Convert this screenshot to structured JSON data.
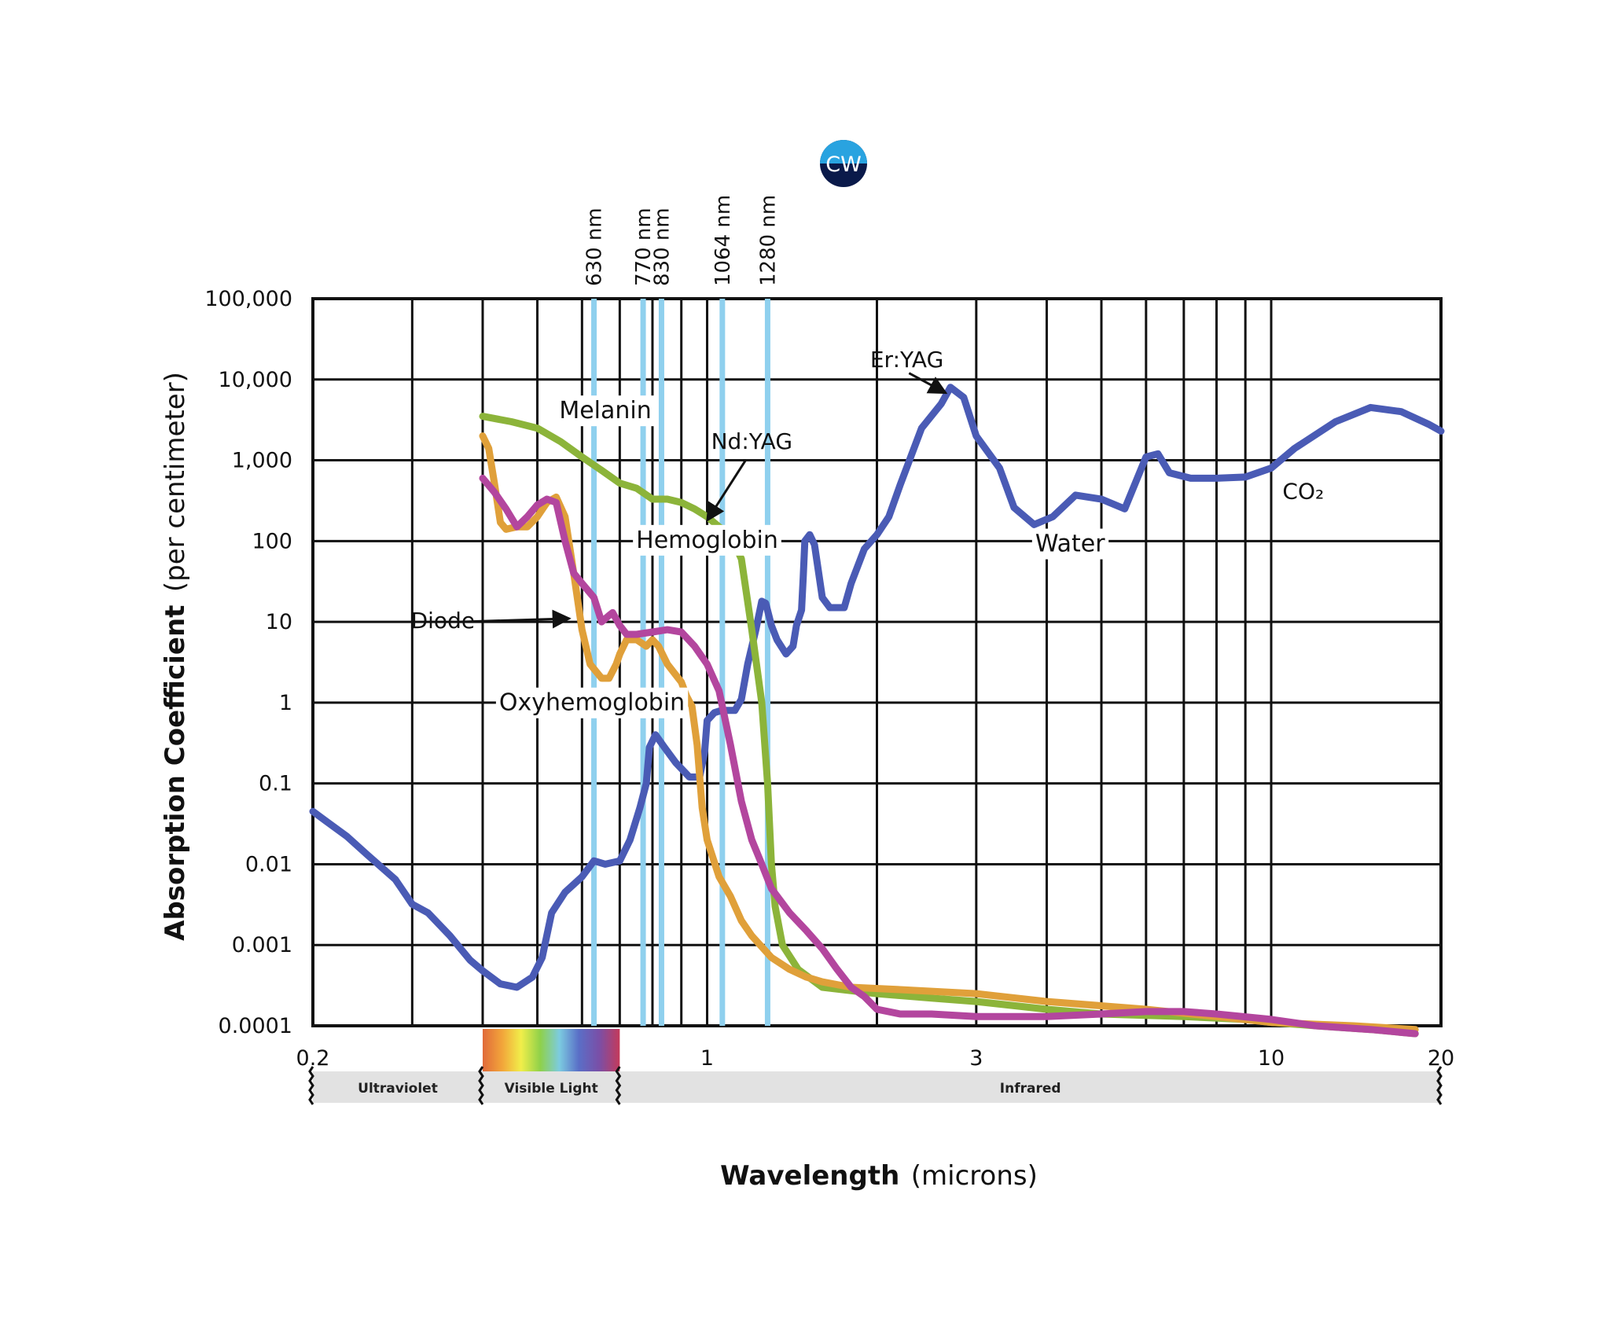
{
  "logo": {
    "text": "CW"
  },
  "chart_data": {
    "type": "line",
    "xlabel_bold": "Wavelength",
    "xlabel_rest": "(microns)",
    "ylabel_bold": "Absorption Coefficient",
    "ylabel_rest": "(per centimeter)",
    "xscale": "log",
    "yscale": "log",
    "xlim": [
      0.2,
      20
    ],
    "ylim": [
      0.0001,
      100000
    ],
    "x_tick_labels": [
      {
        "value": 0.2,
        "label": "0.2"
      },
      {
        "value": 1,
        "label": "1"
      },
      {
        "value": 3,
        "label": "3"
      },
      {
        "value": 10,
        "label": "10"
      },
      {
        "value": 20,
        "label": "20"
      }
    ],
    "y_tick_labels": [
      {
        "value": 100000,
        "label": "100,000"
      },
      {
        "value": 10000,
        "label": "10,000"
      },
      {
        "value": 1000,
        "label": "1,000"
      },
      {
        "value": 100,
        "label": "100"
      },
      {
        "value": 10,
        "label": "10"
      },
      {
        "value": 1,
        "label": "1"
      },
      {
        "value": 0.1,
        "label": "0.1"
      },
      {
        "value": 0.01,
        "label": "0.01"
      },
      {
        "value": 0.001,
        "label": "0.001"
      },
      {
        "value": 0.0001,
        "label": "0.0001"
      }
    ],
    "grid": true,
    "x_gridlines": [
      0.2,
      0.3,
      0.4,
      0.5,
      0.6,
      0.7,
      0.8,
      0.9,
      1,
      2,
      3,
      4,
      5,
      6,
      7,
      8,
      9,
      10,
      20
    ],
    "wavelength_markers": [
      {
        "value": 0.63,
        "label": "630 nm"
      },
      {
        "value": 0.77,
        "label": "770 nm"
      },
      {
        "value": 0.83,
        "label": "830 nm"
      },
      {
        "value": 1.064,
        "label": "1064 nm"
      },
      {
        "value": 1.28,
        "label": "1280 nm"
      }
    ],
    "bands": [
      {
        "label": "Ultraviolet",
        "from": 0.2,
        "to": 0.4
      },
      {
        "label": "Visible Light",
        "from": 0.4,
        "to": 0.7
      },
      {
        "label": "Infrared",
        "from": 0.7,
        "to": 20
      }
    ],
    "series": [
      {
        "label": "Water",
        "color": "#4a5bb5",
        "points": [
          [
            0.2,
            0.045
          ],
          [
            0.21,
            0.035
          ],
          [
            0.23,
            0.022
          ],
          [
            0.25,
            0.013
          ],
          [
            0.28,
            0.0065
          ],
          [
            0.3,
            0.0032
          ],
          [
            0.32,
            0.0025
          ],
          [
            0.35,
            0.0013
          ],
          [
            0.38,
            0.00065
          ],
          [
            0.4,
            0.00048
          ],
          [
            0.43,
            0.00033
          ],
          [
            0.46,
            0.0003
          ],
          [
            0.49,
            0.0004
          ],
          [
            0.51,
            0.0007
          ],
          [
            0.53,
            0.0025
          ],
          [
            0.56,
            0.0045
          ],
          [
            0.6,
            0.007
          ],
          [
            0.63,
            0.011
          ],
          [
            0.66,
            0.01
          ],
          [
            0.7,
            0.011
          ],
          [
            0.73,
            0.02
          ],
          [
            0.76,
            0.05
          ],
          [
            0.78,
            0.1
          ],
          [
            0.79,
            0.28
          ],
          [
            0.81,
            0.4
          ],
          [
            0.84,
            0.28
          ],
          [
            0.88,
            0.18
          ],
          [
            0.93,
            0.12
          ],
          [
            0.97,
            0.12
          ],
          [
            0.99,
            0.25
          ],
          [
            1.0,
            0.6
          ],
          [
            1.03,
            0.75
          ],
          [
            1.06,
            0.8
          ],
          [
            1.08,
            0.8
          ],
          [
            1.12,
            0.8
          ],
          [
            1.15,
            1.1
          ],
          [
            1.18,
            3
          ],
          [
            1.22,
            8
          ],
          [
            1.25,
            18
          ],
          [
            1.27,
            17
          ],
          [
            1.3,
            9
          ],
          [
            1.33,
            6
          ],
          [
            1.38,
            4
          ],
          [
            1.42,
            5
          ],
          [
            1.44,
            9
          ],
          [
            1.47,
            14
          ],
          [
            1.48,
            35
          ],
          [
            1.49,
            100
          ],
          [
            1.52,
            120
          ],
          [
            1.55,
            90
          ],
          [
            1.6,
            20
          ],
          [
            1.65,
            15
          ],
          [
            1.75,
            15
          ],
          [
            1.8,
            30
          ],
          [
            1.9,
            80
          ],
          [
            2.0,
            120
          ],
          [
            2.1,
            200
          ],
          [
            2.2,
            500
          ],
          [
            2.4,
            2500
          ],
          [
            2.6,
            5000
          ],
          [
            2.7,
            8000
          ],
          [
            2.85,
            6000
          ],
          [
            3.0,
            2000
          ],
          [
            3.3,
            800
          ],
          [
            3.5,
            260
          ],
          [
            3.8,
            160
          ],
          [
            4.1,
            200
          ],
          [
            4.5,
            370
          ],
          [
            5.0,
            330
          ],
          [
            5.5,
            250
          ],
          [
            6.0,
            1100
          ],
          [
            6.3,
            1200
          ],
          [
            6.6,
            700
          ],
          [
            7.2,
            600
          ],
          [
            8.0,
            600
          ],
          [
            9.0,
            620
          ],
          [
            10.0,
            800
          ],
          [
            11,
            1400
          ],
          [
            13,
            3000
          ],
          [
            15,
            4500
          ],
          [
            17,
            4000
          ],
          [
            19,
            2800
          ],
          [
            20,
            2300
          ]
        ]
      },
      {
        "label": "Melanin",
        "color": "#8cb43a",
        "points": [
          [
            0.4,
            3500
          ],
          [
            0.45,
            3000
          ],
          [
            0.5,
            2500
          ],
          [
            0.55,
            1700
          ],
          [
            0.6,
            1100
          ],
          [
            0.65,
            750
          ],
          [
            0.7,
            520
          ],
          [
            0.75,
            450
          ],
          [
            0.8,
            330
          ],
          [
            0.85,
            330
          ],
          [
            0.9,
            300
          ],
          [
            0.95,
            250
          ],
          [
            1.0,
            200
          ],
          [
            1.05,
            150
          ],
          [
            1.1,
            120
          ],
          [
            1.15,
            60
          ],
          [
            1.2,
            8
          ],
          [
            1.25,
            1
          ],
          [
            1.28,
            0.1
          ],
          [
            1.3,
            0.01
          ],
          [
            1.32,
            0.003
          ],
          [
            1.36,
            0.001
          ],
          [
            1.45,
            0.0005
          ],
          [
            1.6,
            0.0003
          ],
          [
            2.0,
            0.00025
          ],
          [
            2.5,
            0.00022
          ],
          [
            3,
            0.0002
          ],
          [
            4,
            0.00016
          ],
          [
            5,
            0.00014
          ],
          [
            7,
            0.00013
          ],
          [
            9,
            0.00012
          ],
          [
            10,
            0.00011
          ],
          [
            12,
            0.0001
          ],
          [
            15,
            9e-05
          ],
          [
            18,
            8e-05
          ]
        ]
      },
      {
        "label": "Hemoglobin",
        "color": "#e0a03a",
        "points": [
          [
            0.4,
            2000
          ],
          [
            0.41,
            1400
          ],
          [
            0.42,
            500
          ],
          [
            0.43,
            170
          ],
          [
            0.44,
            140
          ],
          [
            0.46,
            150
          ],
          [
            0.48,
            150
          ],
          [
            0.5,
            200
          ],
          [
            0.52,
            300
          ],
          [
            0.54,
            350
          ],
          [
            0.56,
            200
          ],
          [
            0.58,
            40
          ],
          [
            0.6,
            8
          ],
          [
            0.62,
            3
          ],
          [
            0.65,
            2
          ],
          [
            0.67,
            2
          ],
          [
            0.69,
            3
          ],
          [
            0.7,
            4
          ],
          [
            0.72,
            6
          ],
          [
            0.75,
            6
          ],
          [
            0.78,
            5
          ],
          [
            0.8,
            6
          ],
          [
            0.82,
            5
          ],
          [
            0.85,
            3
          ],
          [
            0.9,
            1.8
          ],
          [
            0.92,
            1.2
          ],
          [
            0.94,
            0.9
          ],
          [
            0.96,
            0.3
          ],
          [
            0.98,
            0.05
          ],
          [
            1.0,
            0.02
          ],
          [
            1.05,
            0.007
          ],
          [
            1.1,
            0.004
          ],
          [
            1.15,
            0.002
          ],
          [
            1.2,
            0.0013
          ],
          [
            1.3,
            0.0007
          ],
          [
            1.4,
            0.0005
          ],
          [
            1.5,
            0.0004
          ],
          [
            1.6,
            0.00035
          ],
          [
            1.8,
            0.0003
          ],
          [
            2.2,
            0.00028
          ],
          [
            3,
            0.00025
          ],
          [
            4,
            0.0002
          ],
          [
            6,
            0.00016
          ],
          [
            8,
            0.00013
          ],
          [
            10,
            0.00011
          ],
          [
            14,
            0.0001
          ],
          [
            18,
            9e-05
          ]
        ]
      },
      {
        "label": "Oxyhemoglobin",
        "color": "#b3469e",
        "points": [
          [
            0.4,
            600
          ],
          [
            0.42,
            400
          ],
          [
            0.44,
            250
          ],
          [
            0.46,
            150
          ],
          [
            0.48,
            200
          ],
          [
            0.5,
            280
          ],
          [
            0.52,
            330
          ],
          [
            0.54,
            300
          ],
          [
            0.56,
            100
          ],
          [
            0.58,
            40
          ],
          [
            0.6,
            30
          ],
          [
            0.63,
            20
          ],
          [
            0.65,
            10
          ],
          [
            0.67,
            12
          ],
          [
            0.68,
            13
          ],
          [
            0.7,
            9
          ],
          [
            0.72,
            7
          ],
          [
            0.75,
            7
          ],
          [
            0.8,
            7.5
          ],
          [
            0.85,
            8
          ],
          [
            0.9,
            7.5
          ],
          [
            0.95,
            5
          ],
          [
            1.0,
            3
          ],
          [
            1.05,
            1.4
          ],
          [
            1.1,
            0.3
          ],
          [
            1.15,
            0.06
          ],
          [
            1.2,
            0.02
          ],
          [
            1.25,
            0.01
          ],
          [
            1.3,
            0.005
          ],
          [
            1.4,
            0.0025
          ],
          [
            1.5,
            0.0015
          ],
          [
            1.6,
            0.0009
          ],
          [
            1.7,
            0.0005
          ],
          [
            1.8,
            0.0003
          ],
          [
            1.9,
            0.00023
          ],
          [
            2.0,
            0.00016
          ],
          [
            2.2,
            0.00014
          ],
          [
            2.5,
            0.00014
          ],
          [
            3,
            0.00013
          ],
          [
            4,
            0.00013
          ],
          [
            5,
            0.00014
          ],
          [
            6,
            0.00015
          ],
          [
            7,
            0.00015
          ],
          [
            8,
            0.00014
          ],
          [
            10,
            0.00012
          ],
          [
            12,
            0.0001
          ],
          [
            15,
            9e-05
          ],
          [
            18,
            8e-05
          ]
        ]
      }
    ],
    "series_labels": [
      {
        "text": "Melanin",
        "x": 0.66,
        "y": 4000
      },
      {
        "text": "Hemoglobin",
        "x": 1.0,
        "y": 100
      },
      {
        "text": "Oxyhemoglobin",
        "x": 0.625,
        "y": 0.97
      },
      {
        "text": "Water",
        "x": 4.4,
        "y": 90
      }
    ],
    "annotations": [
      {
        "text": "Er:YAG",
        "x": 2.26,
        "y": 17000,
        "arrow_from": [
          2.28,
          12000
        ],
        "arrow_to": [
          2.65,
          6800
        ]
      },
      {
        "text": "Nd:YAG",
        "x": 1.2,
        "y": 1650,
        "arrow_from": [
          1.17,
          1000
        ],
        "arrow_to": [
          1.0,
          180
        ]
      },
      {
        "text": "Diode",
        "x": 0.34,
        "y": 10,
        "arrow_from": [
          0.365,
          10
        ],
        "arrow_to": [
          0.57,
          11
        ]
      },
      {
        "text": "CO₂",
        "x": 11.4,
        "y": 400
      }
    ]
  }
}
